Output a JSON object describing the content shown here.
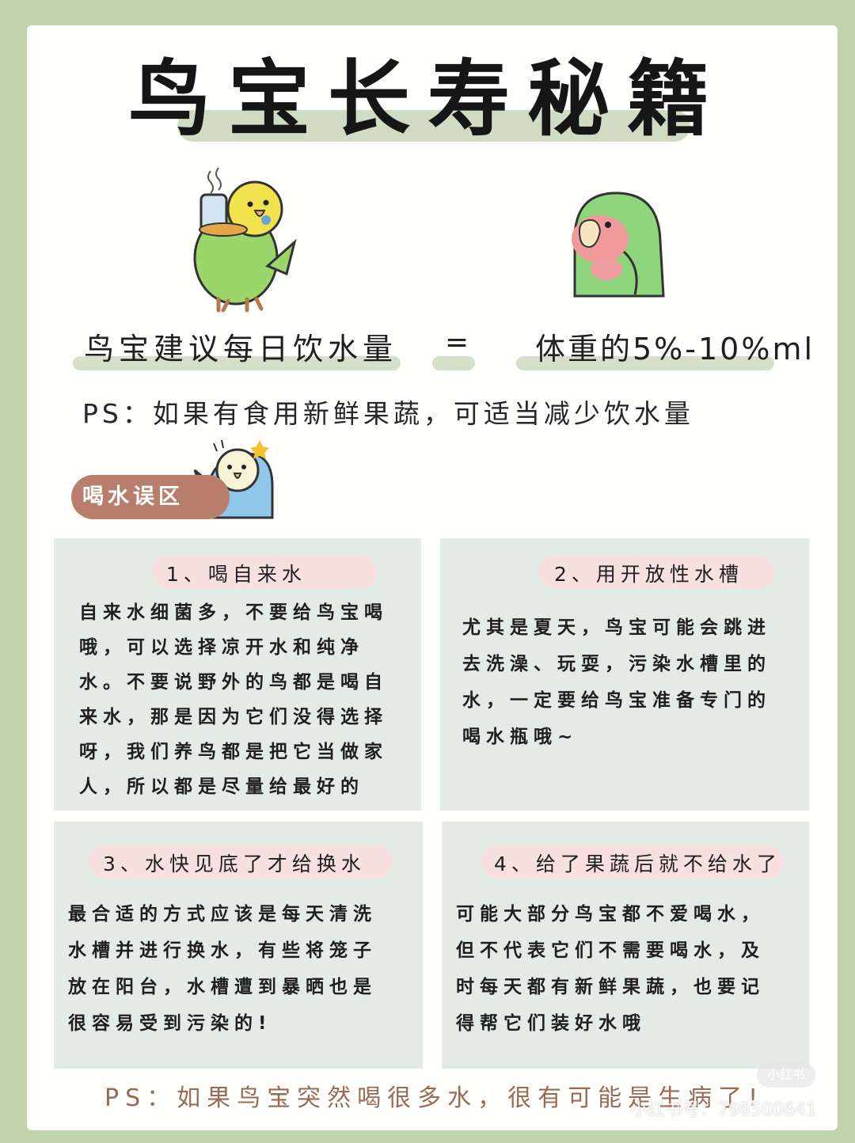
{
  "title": "鸟宝长寿秘籍",
  "equation": {
    "left": "鸟宝建议每日饮水量",
    "operator": "=",
    "right": "体重的5%-10%ml"
  },
  "note_top": "PS：如果有食用新鲜果蔬，可适当减少饮水量",
  "section_tag": "喝水误区",
  "cards": [
    {
      "title": "1、喝自来水",
      "body": "自来水细菌多，不要给鸟宝喝\n哦，可以选择凉开水和纯净\n水。不要说野外的鸟都是喝自\n来水，那是因为它们没得选择\n呀，我们养鸟都是把它当做家\n人，所以都是尽量给最好的"
    },
    {
      "title": "2、用开放性水槽",
      "body": "尤其是夏天，鸟宝可能会跳进\n去洗澡、玩耍，污染水槽里的\n水，一定要给鸟宝准备专门的\n喝水瓶哦~"
    },
    {
      "title": "3、水快见底了才给换水",
      "body": "最合适的方式应该是每天清洗\n水槽并进行换水，有些将笼子\n放在阳台，水槽遭到暴晒也是\n很容易受到污染的!"
    },
    {
      "title": "4、给了果蔬后就不给水了",
      "body": "可能大部分鸟宝都不爱喝水，\n但不代表它们不需要喝水，及\n时每天都有新鲜果蔬，也要记\n得帮它们装好水哦"
    }
  ],
  "note_bottom": "PS：如果鸟宝突然喝很多水，很有可能是生病了!",
  "watermark": {
    "badge": "小红书",
    "id_text": "小红书号：798500641"
  },
  "colors": {
    "background": "#c1d3ad",
    "paper": "#fefefd",
    "highlight": "#d4e0c9",
    "tag": "#b87e6b",
    "card": "#e3ebe7",
    "card_tag": "#f8e0df",
    "note_bottom": "#9b6a55"
  },
  "illustrations": [
    "budgie-drinking-icon",
    "lovebird-icon",
    "surprised-budgie-icon"
  ]
}
